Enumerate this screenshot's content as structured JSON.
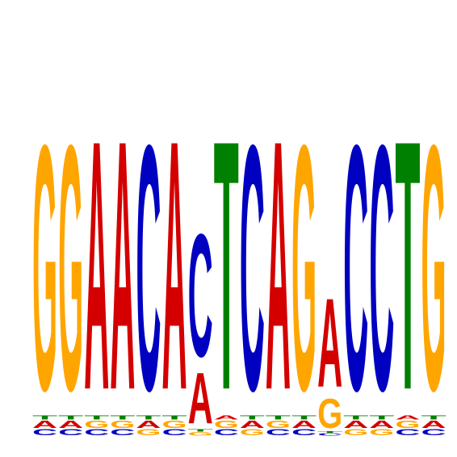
{
  "chart_data": {
    "type": "sequence-logo",
    "title": "",
    "xlabel": "",
    "ylabel": "",
    "colors": {
      "A": "#d40000",
      "C": "#0000c0",
      "G": "#ffa500",
      "T": "#008000"
    },
    "positions": [
      {
        "index": 1,
        "consensus": "G",
        "stack": [
          {
            "letter": "C",
            "weight": 0.015
          },
          {
            "letter": "A",
            "weight": 0.017
          },
          {
            "letter": "T",
            "weight": 0.01
          },
          {
            "letter": "G",
            "weight": 0.58
          }
        ]
      },
      {
        "index": 2,
        "consensus": "G",
        "stack": [
          {
            "letter": "C",
            "weight": 0.015
          },
          {
            "letter": "A",
            "weight": 0.017
          },
          {
            "letter": "T",
            "weight": 0.01
          },
          {
            "letter": "G",
            "weight": 0.58
          }
        ]
      },
      {
        "index": 3,
        "consensus": "A",
        "stack": [
          {
            "letter": "C",
            "weight": 0.015
          },
          {
            "letter": "G",
            "weight": 0.017
          },
          {
            "letter": "T",
            "weight": 0.01
          },
          {
            "letter": "A",
            "weight": 0.59
          }
        ]
      },
      {
        "index": 4,
        "consensus": "A",
        "stack": [
          {
            "letter": "C",
            "weight": 0.015
          },
          {
            "letter": "G",
            "weight": 0.017
          },
          {
            "letter": "T",
            "weight": 0.01
          },
          {
            "letter": "A",
            "weight": 0.59
          }
        ]
      },
      {
        "index": 5,
        "consensus": "C",
        "stack": [
          {
            "letter": "G",
            "weight": 0.015
          },
          {
            "letter": "A",
            "weight": 0.017
          },
          {
            "letter": "T",
            "weight": 0.01
          },
          {
            "letter": "C",
            "weight": 0.58
          }
        ]
      },
      {
        "index": 6,
        "consensus": "A",
        "stack": [
          {
            "letter": "C",
            "weight": 0.015
          },
          {
            "letter": "G",
            "weight": 0.017
          },
          {
            "letter": "T",
            "weight": 0.01
          },
          {
            "letter": "A",
            "weight": 0.59
          }
        ]
      },
      {
        "index": 7,
        "consensus": "C",
        "stack": [
          {
            "letter": "G",
            "weight": 0.008
          },
          {
            "letter": "T",
            "weight": 0.006
          },
          {
            "letter": "A",
            "weight": 0.12
          },
          {
            "letter": "C",
            "weight": 0.29
          }
        ]
      },
      {
        "index": 8,
        "consensus": "T",
        "stack": [
          {
            "letter": "C",
            "weight": 0.015
          },
          {
            "letter": "G",
            "weight": 0.017
          },
          {
            "letter": "A",
            "weight": 0.01
          },
          {
            "letter": "T",
            "weight": 0.59
          }
        ]
      },
      {
        "index": 9,
        "consensus": "C",
        "stack": [
          {
            "letter": "G",
            "weight": 0.015
          },
          {
            "letter": "A",
            "weight": 0.017
          },
          {
            "letter": "T",
            "weight": 0.01
          },
          {
            "letter": "C",
            "weight": 0.58
          }
        ]
      },
      {
        "index": 10,
        "consensus": "A",
        "stack": [
          {
            "letter": "C",
            "weight": 0.015
          },
          {
            "letter": "G",
            "weight": 0.017
          },
          {
            "letter": "T",
            "weight": 0.01
          },
          {
            "letter": "A",
            "weight": 0.59
          }
        ]
      },
      {
        "index": 11,
        "consensus": "G",
        "stack": [
          {
            "letter": "C",
            "weight": 0.015
          },
          {
            "letter": "A",
            "weight": 0.017
          },
          {
            "letter": "T",
            "weight": 0.01
          },
          {
            "letter": "G",
            "weight": 0.58
          }
        ]
      },
      {
        "index": 12,
        "consensus": "A",
        "stack": [
          {
            "letter": "C",
            "weight": 0.006
          },
          {
            "letter": "T",
            "weight": 0.004
          },
          {
            "letter": "G",
            "weight": 0.07
          },
          {
            "letter": "A",
            "weight": 0.21
          }
        ]
      },
      {
        "index": 13,
        "consensus": "C",
        "stack": [
          {
            "letter": "G",
            "weight": 0.015
          },
          {
            "letter": "A",
            "weight": 0.017
          },
          {
            "letter": "T",
            "weight": 0.01
          },
          {
            "letter": "C",
            "weight": 0.58
          }
        ]
      },
      {
        "index": 14,
        "consensus": "C",
        "stack": [
          {
            "letter": "G",
            "weight": 0.015
          },
          {
            "letter": "A",
            "weight": 0.017
          },
          {
            "letter": "T",
            "weight": 0.01
          },
          {
            "letter": "C",
            "weight": 0.58
          }
        ]
      },
      {
        "index": 15,
        "consensus": "T",
        "stack": [
          {
            "letter": "C",
            "weight": 0.015
          },
          {
            "letter": "G",
            "weight": 0.017
          },
          {
            "letter": "A",
            "weight": 0.01
          },
          {
            "letter": "T",
            "weight": 0.59
          }
        ]
      },
      {
        "index": 16,
        "consensus": "G",
        "stack": [
          {
            "letter": "C",
            "weight": 0.015
          },
          {
            "letter": "A",
            "weight": 0.017
          },
          {
            "letter": "T",
            "weight": 0.01
          },
          {
            "letter": "G",
            "weight": 0.58
          }
        ]
      }
    ]
  }
}
